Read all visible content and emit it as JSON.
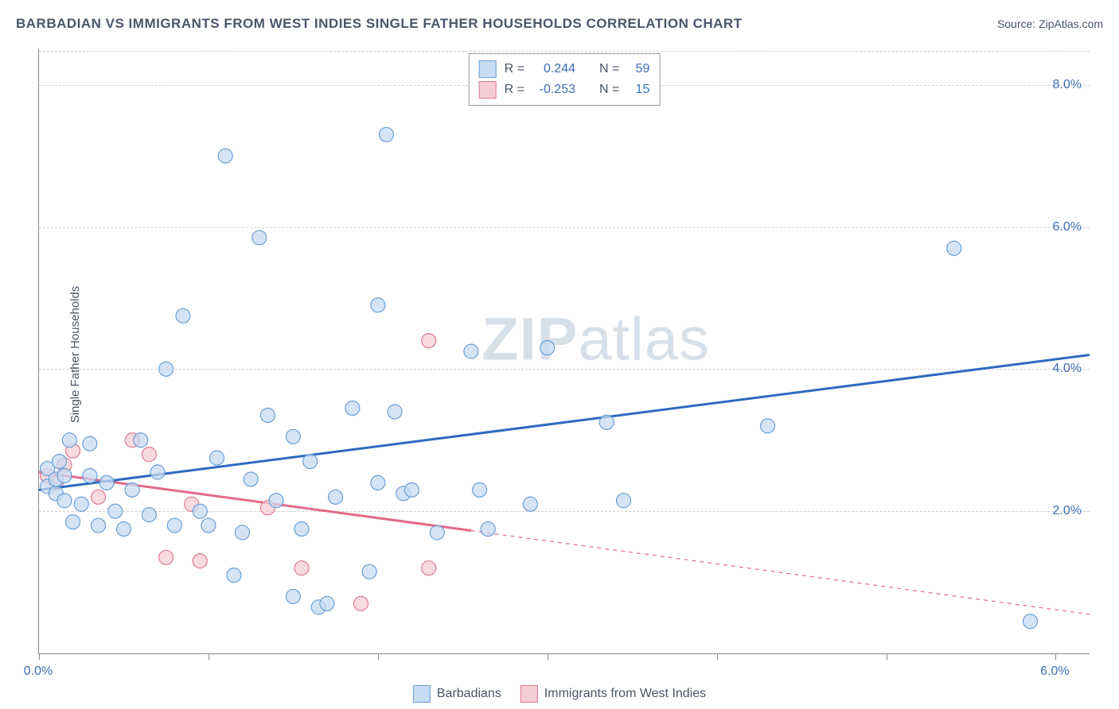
{
  "title": "BARBADIAN VS IMMIGRANTS FROM WEST INDIES SINGLE FATHER HOUSEHOLDS CORRELATION CHART",
  "source": "Source: ZipAtlas.com",
  "y_axis_label": "Single Father Households",
  "watermark_bold": "ZIP",
  "watermark_light": "atlas",
  "chart": {
    "type": "scatter",
    "xlim": [
      0,
      6.2
    ],
    "ylim": [
      0,
      8.5
    ],
    "x_ticks": [
      0.0,
      1.0,
      2.0,
      3.0,
      4.0,
      5.0,
      6.0
    ],
    "x_tick_labels": [
      "0.0%",
      "",
      "",
      "",
      "",
      "",
      "6.0%"
    ],
    "y_ticks": [
      2.0,
      4.0,
      6.0,
      8.0
    ],
    "y_tick_labels": [
      "2.0%",
      "4.0%",
      "6.0%",
      "8.0%"
    ],
    "grid_color": "#d0d0d0",
    "background_color": "#ffffff",
    "marker_radius": 9,
    "marker_stroke_width": 1.2,
    "line_width": 3,
    "series_a": {
      "label": "Barbadians",
      "fill": "#c7dbf2",
      "stroke": "#6a9fd4",
      "line_color": "#2f6ac0",
      "R": "0.244",
      "N": "59",
      "regression": {
        "x1": 0.0,
        "y1": 2.3,
        "x2": 6.2,
        "y2": 4.2,
        "solid_until_x": 6.2
      },
      "points": [
        [
          0.05,
          2.35
        ],
        [
          0.05,
          2.6
        ],
        [
          0.1,
          2.25
        ],
        [
          0.1,
          2.45
        ],
        [
          0.12,
          2.7
        ],
        [
          0.15,
          2.15
        ],
        [
          0.15,
          2.5
        ],
        [
          0.18,
          3.0
        ],
        [
          0.2,
          1.85
        ],
        [
          0.25,
          2.1
        ],
        [
          0.3,
          2.5
        ],
        [
          0.3,
          2.95
        ],
        [
          0.35,
          1.8
        ],
        [
          0.4,
          2.4
        ],
        [
          0.45,
          2.0
        ],
        [
          0.5,
          1.75
        ],
        [
          0.55,
          2.3
        ],
        [
          0.6,
          3.0
        ],
        [
          0.65,
          1.95
        ],
        [
          0.7,
          2.55
        ],
        [
          0.75,
          4.0
        ],
        [
          0.8,
          1.8
        ],
        [
          0.85,
          4.75
        ],
        [
          0.95,
          2.0
        ],
        [
          1.0,
          1.8
        ],
        [
          1.05,
          2.75
        ],
        [
          1.1,
          7.0
        ],
        [
          1.15,
          1.1
        ],
        [
          1.2,
          1.7
        ],
        [
          1.25,
          2.45
        ],
        [
          1.3,
          5.85
        ],
        [
          1.35,
          3.35
        ],
        [
          1.4,
          2.15
        ],
        [
          1.5,
          0.8
        ],
        [
          1.5,
          3.05
        ],
        [
          1.55,
          1.75
        ],
        [
          1.6,
          2.7
        ],
        [
          1.65,
          0.65
        ],
        [
          1.7,
          0.7
        ],
        [
          1.75,
          2.2
        ],
        [
          1.85,
          3.45
        ],
        [
          1.95,
          1.15
        ],
        [
          2.0,
          4.9
        ],
        [
          2.0,
          2.4
        ],
        [
          2.05,
          7.3
        ],
        [
          2.1,
          3.4
        ],
        [
          2.15,
          2.25
        ],
        [
          2.2,
          2.3
        ],
        [
          2.35,
          1.7
        ],
        [
          2.55,
          4.25
        ],
        [
          2.6,
          2.3
        ],
        [
          2.65,
          1.75
        ],
        [
          2.9,
          2.1
        ],
        [
          3.0,
          4.3
        ],
        [
          3.35,
          3.25
        ],
        [
          3.45,
          2.15
        ],
        [
          4.3,
          3.2
        ],
        [
          5.4,
          5.7
        ],
        [
          5.85,
          0.45
        ]
      ]
    },
    "series_b": {
      "label": "Immigrants from West Indies",
      "fill": "#f5cdd5",
      "stroke": "#dd7a94",
      "line_color": "#e36a8a",
      "R": "-0.253",
      "N": "15",
      "regression": {
        "x1": 0.0,
        "y1": 2.55,
        "x2": 6.2,
        "y2": 0.55,
        "solid_until_x": 2.55
      },
      "points": [
        [
          0.05,
          2.5
        ],
        [
          0.1,
          2.4
        ],
        [
          0.15,
          2.65
        ],
        [
          0.2,
          2.85
        ],
        [
          0.35,
          2.2
        ],
        [
          0.55,
          3.0
        ],
        [
          0.65,
          2.8
        ],
        [
          0.75,
          1.35
        ],
        [
          0.9,
          2.1
        ],
        [
          0.95,
          1.3
        ],
        [
          1.35,
          2.05
        ],
        [
          1.55,
          1.2
        ],
        [
          1.9,
          0.7
        ],
        [
          2.3,
          1.2
        ],
        [
          2.3,
          4.4
        ]
      ]
    }
  },
  "legend_top": {
    "R_label": "R =",
    "N_label": "N ="
  }
}
